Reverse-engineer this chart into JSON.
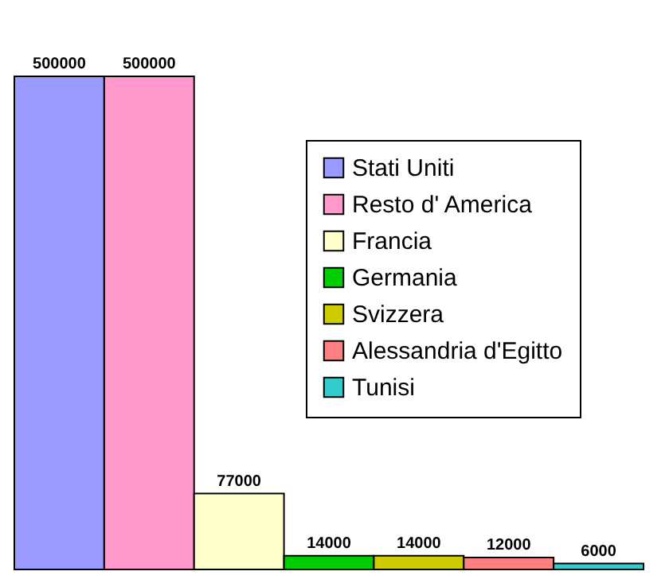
{
  "chart_data": {
    "type": "bar",
    "categories": [
      null,
      null,
      null,
      null,
      null,
      null,
      null
    ],
    "series": [
      {
        "name": "Stati Uniti",
        "color": "#9999ff",
        "values": [
          500000,
          null,
          null,
          null,
          null,
          null,
          null
        ]
      },
      {
        "name": "Resto d' America",
        "color": "#ff99cc",
        "values": [
          null,
          500000,
          null,
          null,
          null,
          null,
          null
        ]
      },
      {
        "name": "Francia",
        "color": "#ffffcc",
        "values": [
          null,
          null,
          77000,
          null,
          null,
          null,
          null
        ]
      },
      {
        "name": "Germania",
        "color": "#00cc00",
        "values": [
          null,
          null,
          null,
          14000,
          null,
          null,
          null
        ]
      },
      {
        "name": "Svizzera",
        "color": "#cccc00",
        "values": [
          null,
          null,
          null,
          null,
          14000,
          null,
          null
        ]
      },
      {
        "name": "Alessandria d'Egitto",
        "color": "#ff8080",
        "values": [
          null,
          null,
          null,
          null,
          null,
          12000,
          null
        ]
      },
      {
        "name": "Tunisi",
        "color": "#33cccc",
        "values": [
          null,
          null,
          null,
          null,
          null,
          null,
          6000
        ]
      }
    ],
    "stacked": true,
    "data_labels": true,
    "legend": "top right"
  }
}
